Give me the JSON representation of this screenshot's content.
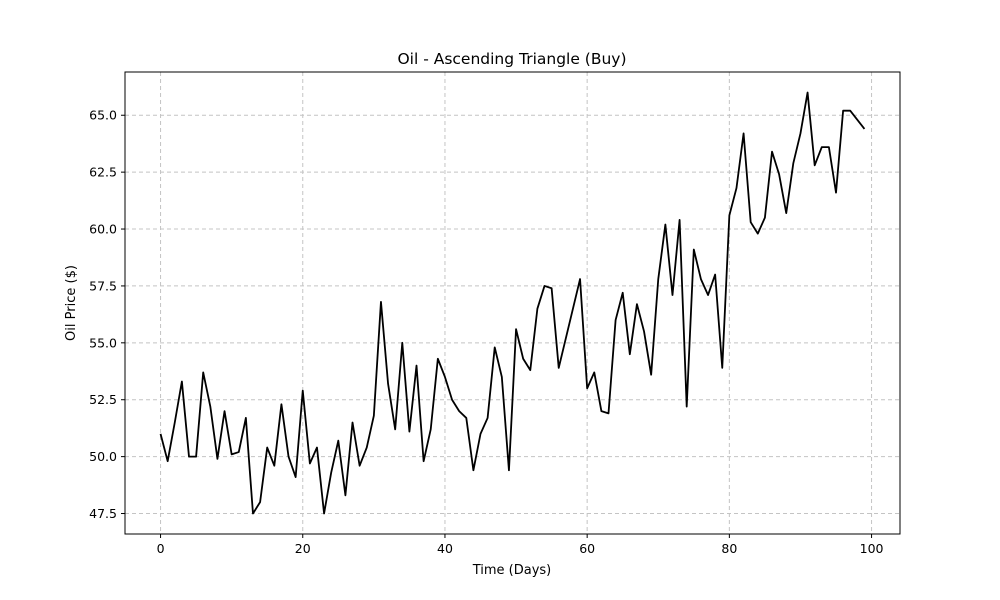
{
  "chart_data": {
    "type": "line",
    "title": "Oil - Ascending Triangle (Buy)",
    "xlabel": "Time (Days)",
    "ylabel": "Oil Price ($)",
    "xlim": [
      -5,
      104
    ],
    "ylim": [
      46.6,
      66.9
    ],
    "xticks": [
      0,
      20,
      40,
      60,
      80,
      100
    ],
    "yticks": [
      47.5,
      50.0,
      52.5,
      55.0,
      57.5,
      60.0,
      62.5,
      65.0
    ],
    "xtick_labels": [
      "0",
      "20",
      "40",
      "60",
      "80",
      "100"
    ],
    "ytick_labels": [
      "47.5",
      "50.0",
      "52.5",
      "55.0",
      "57.5",
      "60.0",
      "62.5",
      "65.0"
    ],
    "grid": true,
    "line_color": "#000000",
    "series": [
      {
        "x": [
          0,
          1,
          2,
          3,
          4,
          5,
          6,
          7,
          8,
          9,
          10,
          11,
          12,
          13,
          14,
          15,
          16,
          17,
          18,
          19,
          20,
          21,
          22,
          23,
          24,
          25,
          26,
          27,
          28,
          29,
          30,
          31,
          32,
          33,
          34,
          35,
          36,
          37,
          38,
          39,
          40,
          41,
          42,
          43,
          44,
          45,
          46,
          47,
          48,
          49,
          50,
          51,
          52,
          53,
          54,
          55,
          56,
          57,
          58,
          59,
          60,
          61,
          62,
          63,
          64,
          65,
          66,
          67,
          68,
          69,
          70,
          71,
          72,
          73,
          74,
          75,
          76,
          77,
          78,
          79,
          80,
          81,
          82,
          83,
          84,
          85,
          86,
          87,
          88,
          89,
          90,
          91,
          92,
          93,
          94,
          95,
          96,
          97,
          98,
          99
        ],
        "values": [
          51.0,
          49.8,
          51.5,
          53.3,
          50.0,
          50.0,
          53.7,
          52.2,
          49.9,
          52.0,
          50.1,
          50.2,
          51.7,
          47.5,
          48.0,
          50.4,
          49.6,
          52.3,
          50.0,
          49.1,
          52.9,
          49.7,
          50.4,
          47.5,
          49.3,
          50.7,
          48.3,
          51.5,
          49.6,
          50.4,
          51.8,
          56.8,
          53.2,
          51.2,
          55.0,
          51.1,
          54.0,
          49.8,
          51.2,
          54.3,
          53.5,
          52.5,
          52.0,
          51.7,
          49.4,
          51.0,
          51.7,
          54.8,
          53.5,
          49.4,
          55.6,
          54.3,
          53.8,
          56.5,
          57.5,
          57.4,
          53.9,
          55.2,
          56.5,
          57.8,
          53.0,
          53.7,
          52.0,
          51.9,
          56.0,
          57.2,
          54.5,
          56.7,
          55.5,
          53.6,
          57.8,
          60.2,
          57.1,
          60.4,
          52.2,
          59.1,
          57.8,
          57.1,
          58.0,
          53.9,
          60.6,
          61.8,
          64.2,
          60.3,
          59.8,
          60.5,
          63.4,
          62.4,
          60.7,
          62.9,
          64.2,
          66.0,
          62.8,
          63.6,
          63.6,
          61.6,
          65.2,
          65.2,
          64.8,
          64.4
        ]
      }
    ]
  }
}
